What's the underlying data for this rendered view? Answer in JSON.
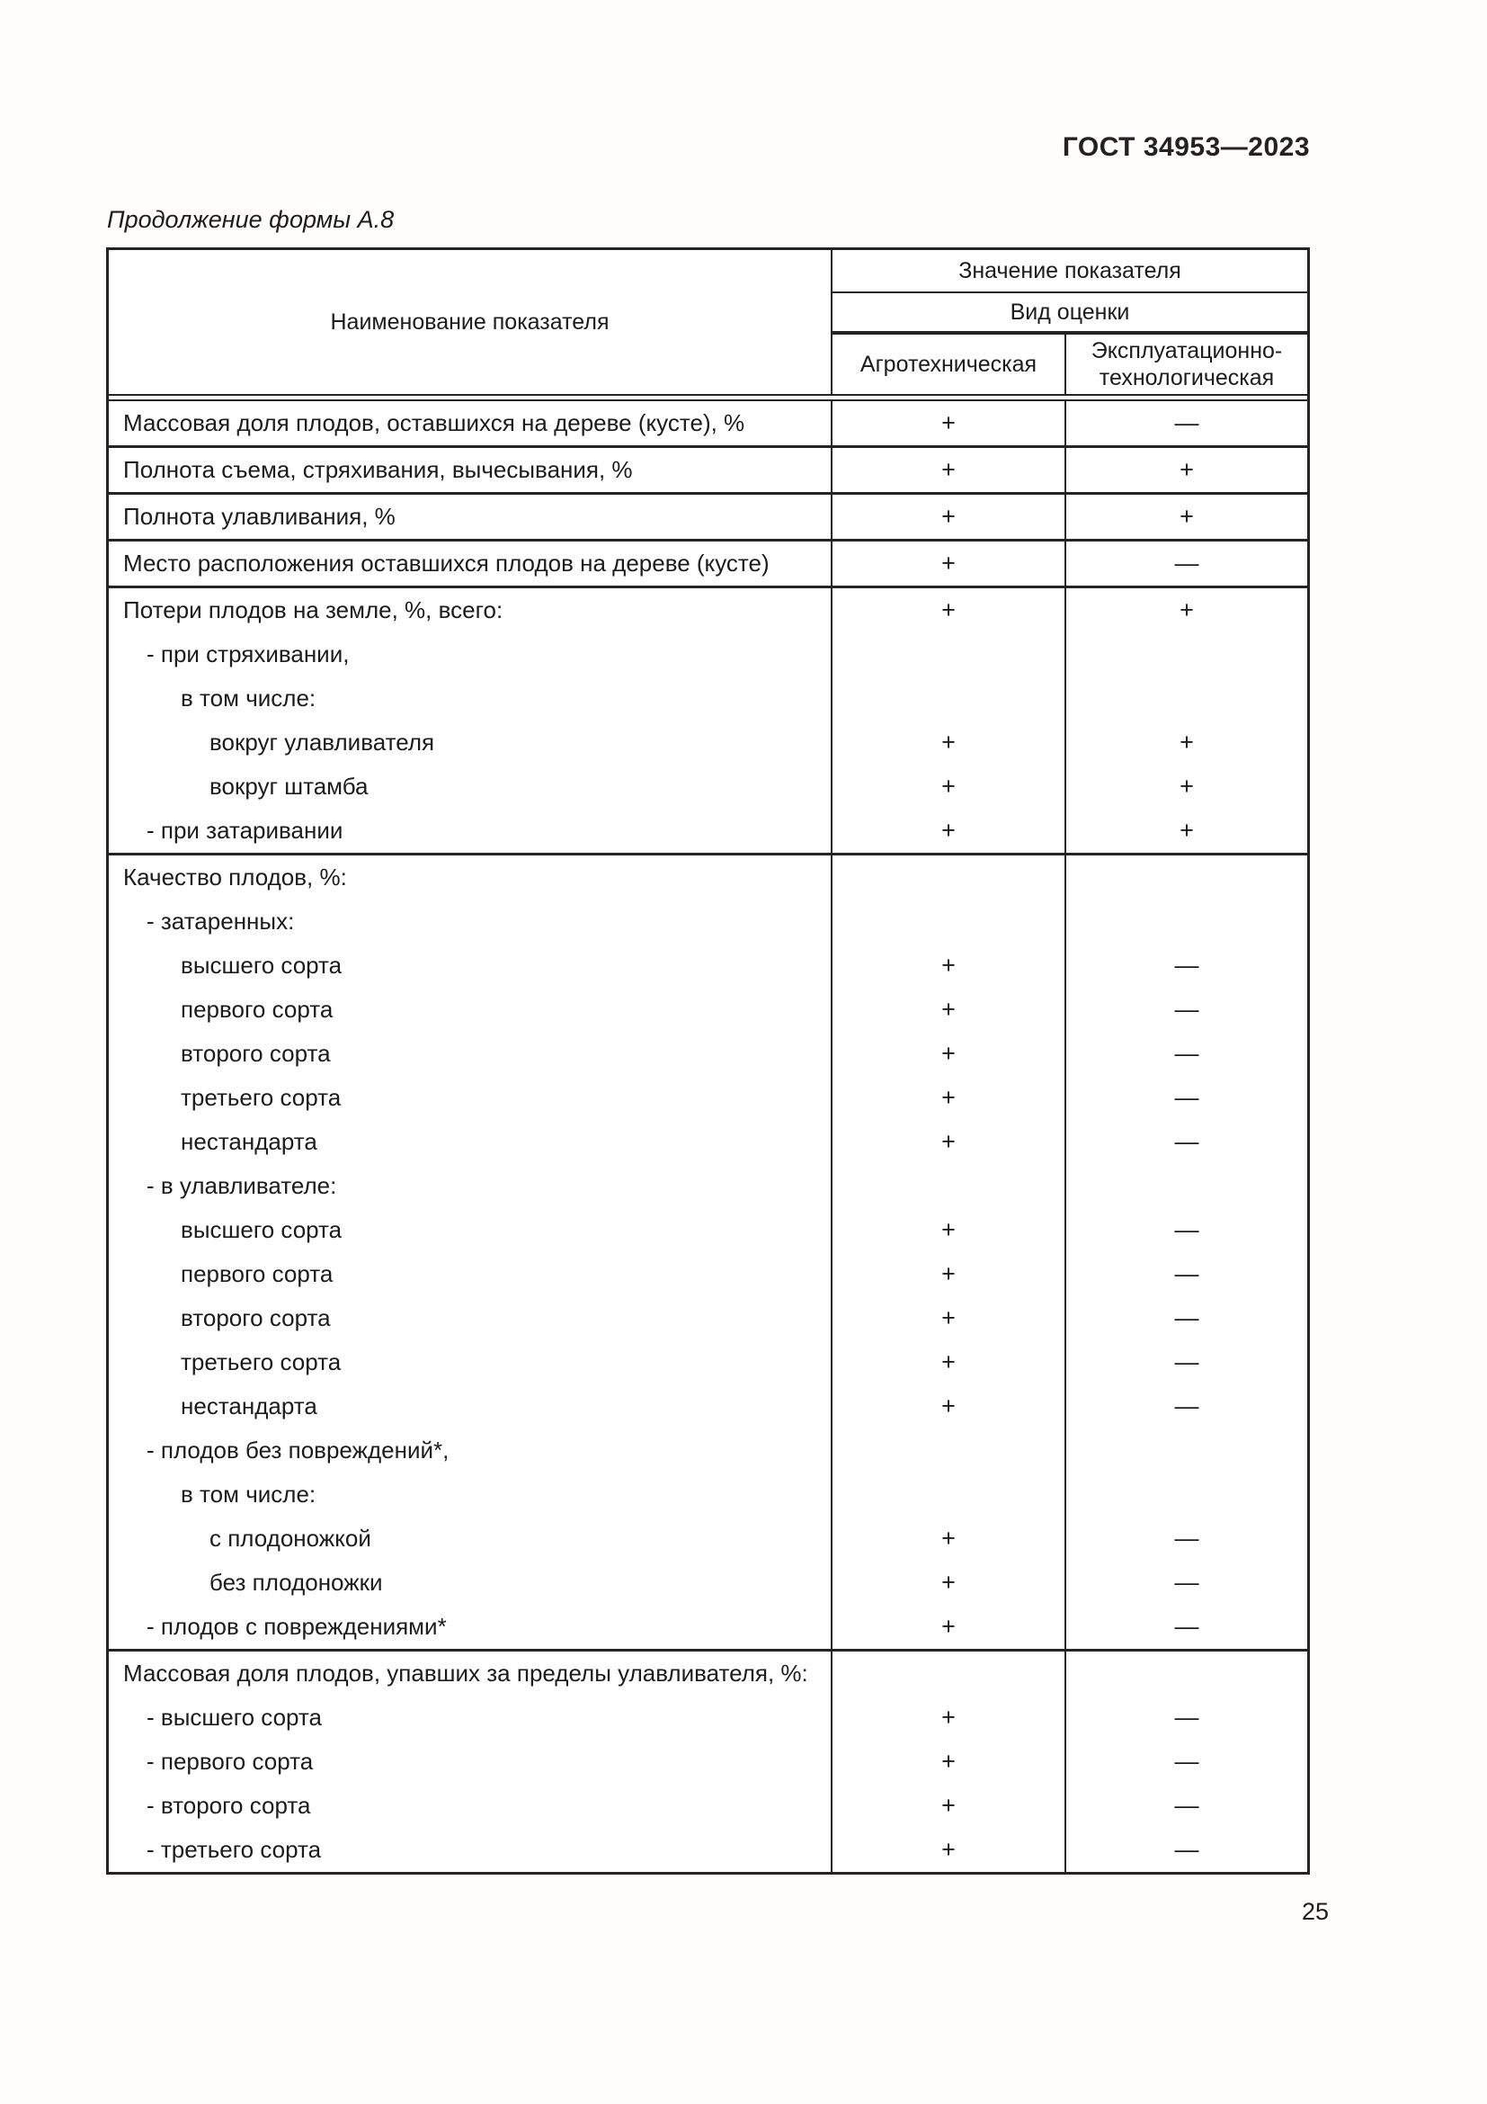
{
  "page": {
    "standard_ref": "ГОСТ 34953—2023",
    "form_caption": "Продолжение формы А.8",
    "page_number": "25"
  },
  "table": {
    "header": {
      "name_col": "Наименование показателя",
      "value_col": "Значение показателя",
      "eval_kind": "Вид оценки",
      "col_agro": "Агротехническая",
      "col_exp_line1": "Эксплуатационно-",
      "col_exp_line2": "технологическая"
    },
    "sections": [
      {
        "rows": [
          {
            "label": "Массовая доля плодов, оставшихся на дереве (кусте), %",
            "indent": 0,
            "agro": "+",
            "exp": "—"
          }
        ]
      },
      {
        "rows": [
          {
            "label": "Полнота съема, стряхивания, вычесывания, %",
            "indent": 0,
            "agro": "+",
            "exp": "+"
          }
        ]
      },
      {
        "rows": [
          {
            "label": "Полнота улавливания, %",
            "indent": 0,
            "agro": "+",
            "exp": "+"
          }
        ]
      },
      {
        "rows": [
          {
            "label": "Место расположения оставшихся плодов на дереве (кусте)",
            "indent": 0,
            "agro": "+",
            "exp": "—"
          }
        ]
      },
      {
        "rows": [
          {
            "label": "Потери плодов на земле, %, всего:",
            "indent": 0,
            "agro": "+",
            "exp": "+"
          },
          {
            "label": "- при стряхивании,",
            "indent": 1,
            "agro": "",
            "exp": ""
          },
          {
            "label": "в том числе:",
            "indent": 2,
            "agro": "",
            "exp": ""
          },
          {
            "label": "вокруг улавливателя",
            "indent": 3,
            "agro": "+",
            "exp": "+"
          },
          {
            "label": "вокруг штамба",
            "indent": 3,
            "agro": "+",
            "exp": "+"
          },
          {
            "label": "- при затаривании",
            "indent": 1,
            "agro": "+",
            "exp": "+"
          }
        ]
      },
      {
        "rows": [
          {
            "label": "Качество плодов, %:",
            "indent": 0,
            "agro": "",
            "exp": ""
          },
          {
            "label": "- затаренных:",
            "indent": 1,
            "agro": "",
            "exp": ""
          },
          {
            "label": "высшего сорта",
            "indent": 2,
            "agro": "+",
            "exp": "—"
          },
          {
            "label": "первого сорта",
            "indent": 2,
            "agro": "+",
            "exp": "—"
          },
          {
            "label": "второго сорта",
            "indent": 2,
            "agro": "+",
            "exp": "—"
          },
          {
            "label": "третьего сорта",
            "indent": 2,
            "agro": "+",
            "exp": "—"
          },
          {
            "label": "нестандарта",
            "indent": 2,
            "agro": "+",
            "exp": "—"
          },
          {
            "label": "- в улавливателе:",
            "indent": 1,
            "agro": "",
            "exp": ""
          },
          {
            "label": "высшего сорта",
            "indent": 2,
            "agro": "+",
            "exp": "—"
          },
          {
            "label": "первого сорта",
            "indent": 2,
            "agro": "+",
            "exp": "—"
          },
          {
            "label": "второго сорта",
            "indent": 2,
            "agro": "+",
            "exp": "—"
          },
          {
            "label": "третьего сорта",
            "indent": 2,
            "agro": "+",
            "exp": "—"
          },
          {
            "label": "нестандарта",
            "indent": 2,
            "agro": "+",
            "exp": "—"
          },
          {
            "label": "- плодов без повреждений*,",
            "indent": 1,
            "agro": "",
            "exp": ""
          },
          {
            "label": "в том числе:",
            "indent": 2,
            "agro": "",
            "exp": ""
          },
          {
            "label": "с плодоножкой",
            "indent": 3,
            "agro": "+",
            "exp": "—"
          },
          {
            "label": "без плодоножки",
            "indent": 3,
            "agro": "+",
            "exp": "—"
          },
          {
            "label": "- плодов с повреждениями*",
            "indent": 1,
            "agro": "+",
            "exp": "—"
          }
        ]
      },
      {
        "rows": [
          {
            "label": "Массовая доля плодов, упавших за пределы улавливателя, %:",
            "indent": 0,
            "agro": "",
            "exp": ""
          },
          {
            "label": "- высшего сорта",
            "indent": 1,
            "agro": "+",
            "exp": "—"
          },
          {
            "label": "- первого сорта",
            "indent": 1,
            "agro": "+",
            "exp": "—"
          },
          {
            "label": "- второго сорта",
            "indent": 1,
            "agro": "+",
            "exp": "—"
          },
          {
            "label": "- третьего сорта",
            "indent": 1,
            "agro": "+",
            "exp": "—"
          }
        ]
      }
    ]
  }
}
